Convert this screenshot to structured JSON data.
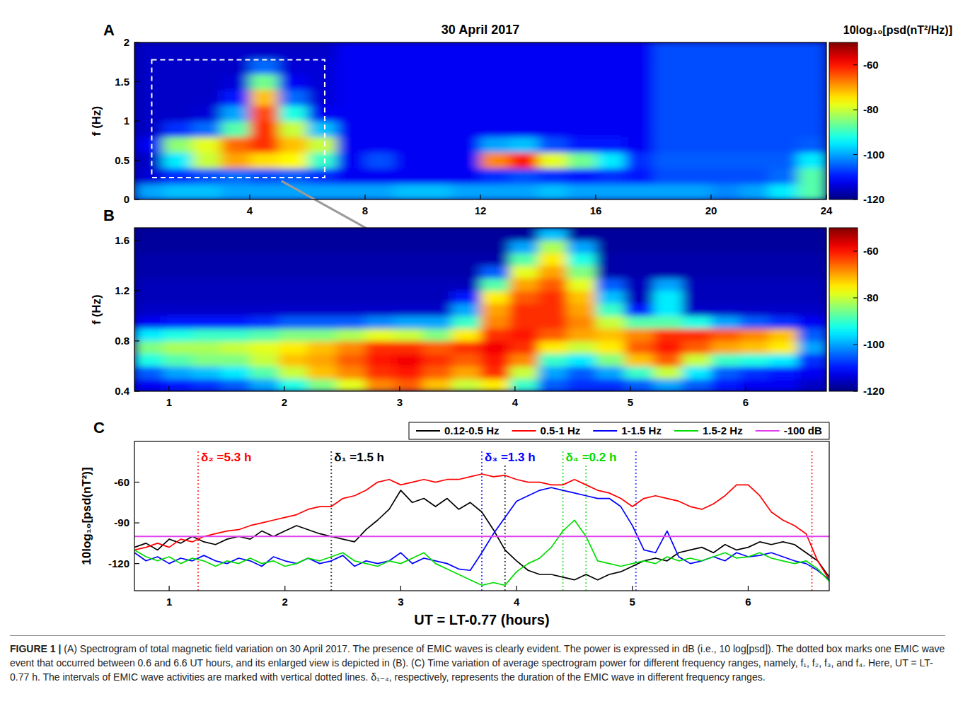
{
  "chart_data": [
    {
      "type": "heatmap",
      "panel": "A",
      "title": "30 April 2017",
      "ylabel": "f (Hz)",
      "color": "jet",
      "xlim": [
        0,
        24
      ],
      "ylim": [
        0,
        2
      ],
      "xticks": [
        4,
        8,
        12,
        16,
        20,
        24
      ],
      "yticks": [
        0,
        0.5,
        1,
        1.5,
        2
      ],
      "colorbar": {
        "label": "10log₁₀[psd(nT²/Hz)]",
        "range": [
          -120,
          -50
        ],
        "ticks": [
          -60,
          -80,
          -100,
          -120
        ]
      },
      "highlight": {
        "x": [
          0.6,
          6.6
        ],
        "y": [
          0.28,
          1.78
        ]
      },
      "x": [
        0.5,
        1.5,
        2.5,
        3.5,
        4.5,
        5.5,
        6.5,
        7.5,
        8.5,
        9.5,
        10.5,
        11.5,
        12.5,
        13.5,
        14.5,
        15.5,
        16.5,
        17.5,
        18.5,
        19.5,
        20.5,
        21.5,
        22.5,
        23.5
      ],
      "y": [
        0.1,
        0.3,
        0.5,
        0.7,
        0.9,
        1.1,
        1.3,
        1.5,
        1.7,
        1.9
      ],
      "values": [
        [
          -100,
          -98,
          -98,
          -100,
          -100,
          -100,
          -100,
          -100,
          -100,
          -98,
          -98,
          -100,
          -100,
          -100,
          -98,
          -100,
          -100,
          -100,
          -100,
          -100,
          -102,
          -100,
          -95,
          -88
        ],
        [
          -114,
          -108,
          -106,
          -104,
          -106,
          -105,
          -108,
          -112,
          -112,
          -112,
          -112,
          -112,
          -108,
          -106,
          -108,
          -110,
          -108,
          -110,
          -106,
          -106,
          -106,
          -106,
          -104,
          -88
        ],
        [
          -115,
          -95,
          -80,
          -70,
          -74,
          -76,
          -90,
          -112,
          -106,
          -112,
          -112,
          -112,
          -68,
          -60,
          -78,
          -86,
          -95,
          -108,
          -105,
          -105,
          -105,
          -105,
          -105,
          -95
        ],
        [
          -112,
          -84,
          -78,
          -66,
          -62,
          -72,
          -80,
          -112,
          -112,
          -112,
          -112,
          -112,
          -100,
          -98,
          -106,
          -110,
          -110,
          -112,
          -106,
          -106,
          -106,
          -106,
          -106,
          -105
        ],
        [
          -115,
          -108,
          -104,
          -88,
          -62,
          -80,
          -98,
          -112,
          -112,
          -112,
          -112,
          -112,
          -112,
          -112,
          -112,
          -112,
          -112,
          -112,
          -106,
          -106,
          -106,
          -106,
          -106,
          -106
        ],
        [
          -115,
          -115,
          -114,
          -100,
          -64,
          -92,
          -112,
          -112,
          -112,
          -112,
          -112,
          -112,
          -112,
          -112,
          -112,
          -112,
          -112,
          -112,
          -106,
          -106,
          -106,
          -106,
          -106,
          -106
        ],
        [
          -115,
          -115,
          -115,
          -110,
          -72,
          -104,
          -114,
          -112,
          -112,
          -112,
          -112,
          -112,
          -112,
          -112,
          -112,
          -112,
          -112,
          -112,
          -106,
          -106,
          -106,
          -106,
          -106,
          -106
        ],
        [
          -115,
          -115,
          -115,
          -114,
          -86,
          -112,
          -114,
          -112,
          -112,
          -112,
          -112,
          -112,
          -112,
          -112,
          -112,
          -112,
          -112,
          -112,
          -106,
          -106,
          -106,
          -106,
          -106,
          -106
        ],
        [
          -115,
          -115,
          -115,
          -115,
          -104,
          -114,
          -114,
          -112,
          -112,
          -112,
          -112,
          -112,
          -112,
          -112,
          -112,
          -112,
          -112,
          -112,
          -106,
          -106,
          -106,
          -106,
          -106,
          -106
        ],
        [
          -115,
          -115,
          -115,
          -115,
          -115,
          -115,
          -115,
          -112,
          -112,
          -112,
          -112,
          -112,
          -112,
          -112,
          -112,
          -112,
          -112,
          -112,
          -106,
          -106,
          -106,
          -106,
          -106,
          -106
        ]
      ]
    },
    {
      "type": "heatmap",
      "panel": "B",
      "ylabel": "f (Hz)",
      "color": "jet",
      "xlim": [
        0.7,
        6.7
      ],
      "ylim": [
        0.4,
        1.7
      ],
      "xticks": [
        1,
        2,
        3,
        4,
        5,
        6
      ],
      "yticks": [
        0.4,
        0.8,
        1.2,
        1.6
      ],
      "colorbar": {
        "range": [
          -120,
          -50
        ],
        "ticks": [
          -60,
          -80,
          -100,
          -120
        ]
      },
      "x": [
        0.825,
        1.075,
        1.325,
        1.575,
        1.825,
        2.075,
        2.325,
        2.575,
        2.825,
        3.075,
        3.325,
        3.575,
        3.825,
        4.075,
        4.325,
        4.575,
        4.825,
        5.075,
        5.325,
        5.575,
        5.825,
        6.075,
        6.325,
        6.575
      ],
      "y": [
        0.45,
        0.55,
        0.65,
        0.75,
        0.85,
        0.95,
        1.05,
        1.15,
        1.25,
        1.35,
        1.45,
        1.55,
        1.65
      ],
      "values": [
        [
          -112,
          -110,
          -108,
          -105,
          -100,
          -92,
          -85,
          -78,
          -68,
          -65,
          -72,
          -80,
          -75,
          -90,
          -105,
          -108,
          -108,
          -105,
          -100,
          -105,
          -110,
          -112,
          -112,
          -115
        ],
        [
          -105,
          -100,
          -98,
          -95,
          -88,
          -80,
          -72,
          -68,
          -62,
          -60,
          -65,
          -70,
          -62,
          -80,
          -100,
          -105,
          -100,
          -90,
          -80,
          -95,
          -105,
          -108,
          -110,
          -112
        ],
        [
          -92,
          -88,
          -85,
          -85,
          -80,
          -72,
          -70,
          -65,
          -60,
          -58,
          -62,
          -65,
          -60,
          -68,
          -90,
          -95,
          -85,
          -72,
          -65,
          -80,
          -90,
          -92,
          -95,
          -108
        ],
        [
          -85,
          -82,
          -82,
          -80,
          -78,
          -75,
          -72,
          -68,
          -62,
          -62,
          -65,
          -62,
          -58,
          -62,
          -75,
          -80,
          -75,
          -65,
          -60,
          -65,
          -70,
          -72,
          -75,
          -100
        ],
        [
          -95,
          -92,
          -90,
          -90,
          -88,
          -85,
          -85,
          -82,
          -78,
          -80,
          -85,
          -75,
          -62,
          -60,
          -65,
          -70,
          -72,
          -68,
          -62,
          -62,
          -65,
          -68,
          -72,
          -105
        ],
        [
          -112,
          -110,
          -110,
          -110,
          -108,
          -105,
          -105,
          -105,
          -102,
          -100,
          -100,
          -90,
          -68,
          -62,
          -62,
          -68,
          -80,
          -88,
          -88,
          -92,
          -100,
          -105,
          -108,
          -112
        ],
        [
          -115,
          -115,
          -115,
          -115,
          -115,
          -115,
          -115,
          -115,
          -115,
          -115,
          -115,
          -100,
          -70,
          -62,
          -62,
          -70,
          -90,
          -110,
          -95,
          -115,
          -115,
          -115,
          -115,
          -115
        ],
        [
          -116,
          -116,
          -116,
          -116,
          -116,
          -116,
          -116,
          -116,
          -116,
          -116,
          -116,
          -110,
          -75,
          -65,
          -62,
          -72,
          -98,
          -116,
          -95,
          -116,
          -116,
          -116,
          -116,
          -116
        ],
        [
          -116,
          -116,
          -116,
          -116,
          -116,
          -116,
          -116,
          -116,
          -116,
          -116,
          -116,
          -116,
          -88,
          -70,
          -65,
          -78,
          -105,
          -116,
          -100,
          -116,
          -116,
          -116,
          -116,
          -116
        ],
        [
          -117,
          -117,
          -117,
          -117,
          -117,
          -117,
          -117,
          -117,
          -117,
          -117,
          -117,
          -117,
          -105,
          -78,
          -70,
          -85,
          -117,
          -117,
          -117,
          -117,
          -117,
          -117,
          -117,
          -117
        ],
        [
          -117,
          -117,
          -117,
          -117,
          -117,
          -117,
          -117,
          -117,
          -117,
          -117,
          -117,
          -117,
          -117,
          -88,
          -75,
          -92,
          -117,
          -117,
          -117,
          -117,
          -117,
          -117,
          -117,
          -117
        ],
        [
          -118,
          -118,
          -118,
          -118,
          -118,
          -118,
          -118,
          -118,
          -118,
          -118,
          -118,
          -118,
          -118,
          -100,
          -82,
          -100,
          -118,
          -118,
          -118,
          -118,
          -118,
          -118,
          -118,
          -118
        ],
        [
          -118,
          -118,
          -118,
          -118,
          -118,
          -118,
          -118,
          -118,
          -118,
          -118,
          -118,
          -118,
          -118,
          -118,
          -98,
          -118,
          -118,
          -118,
          -118,
          -118,
          -118,
          -118,
          -118,
          -118
        ]
      ]
    },
    {
      "type": "line",
      "panel": "C",
      "xlabel": "UT = LT-0.77 (hours)",
      "ylabel": "10log₁₀[psd(nT²)]",
      "legend": "top-right",
      "xlim": [
        0.7,
        6.7
      ],
      "ylim": [
        -140,
        -30
      ],
      "xticks": [
        1,
        2,
        3,
        4,
        5,
        6
      ],
      "yticks": [
        -120,
        -90,
        -60
      ],
      "x": [
        0.7,
        0.8,
        0.9,
        1.0,
        1.1,
        1.2,
        1.3,
        1.4,
        1.5,
        1.6,
        1.7,
        1.8,
        1.9,
        2.0,
        2.1,
        2.2,
        2.3,
        2.4,
        2.5,
        2.6,
        2.7,
        2.8,
        2.9,
        3.0,
        3.1,
        3.2,
        3.3,
        3.4,
        3.5,
        3.6,
        3.7,
        3.8,
        3.9,
        4.0,
        4.1,
        4.2,
        4.3,
        4.4,
        4.5,
        4.6,
        4.7,
        4.8,
        4.9,
        5.0,
        5.1,
        5.2,
        5.3,
        5.4,
        5.5,
        5.6,
        5.7,
        5.8,
        5.9,
        6.0,
        6.1,
        6.2,
        6.3,
        6.4,
        6.5,
        6.6,
        6.7
      ],
      "series": [
        {
          "name": "0.12-0.5 Hz",
          "color": "#000000",
          "values": [
            -108,
            -105,
            -110,
            -102,
            -105,
            -100,
            -104,
            -106,
            -102,
            -100,
            -102,
            -96,
            -100,
            -96,
            -92,
            -95,
            -98,
            -100,
            -102,
            -104,
            -95,
            -88,
            -80,
            -66,
            -75,
            -72,
            -78,
            -72,
            -80,
            -75,
            -82,
            -95,
            -110,
            -118,
            -125,
            -128,
            -128,
            -130,
            -132,
            -128,
            -132,
            -128,
            -126,
            -122,
            -118,
            -116,
            -118,
            -112,
            -110,
            -108,
            -112,
            -106,
            -110,
            -108,
            -104,
            -106,
            -104,
            -106,
            -112,
            -118,
            -130
          ]
        },
        {
          "name": "0.5-1 Hz",
          "color": "#ff0000",
          "values": [
            -110,
            -108,
            -105,
            -108,
            -102,
            -104,
            -100,
            -98,
            -96,
            -95,
            -92,
            -90,
            -88,
            -86,
            -84,
            -80,
            -78,
            -78,
            -72,
            -70,
            -66,
            -60,
            -58,
            -62,
            -60,
            -58,
            -60,
            -58,
            -58,
            -56,
            -54,
            -56,
            -55,
            -58,
            -60,
            -60,
            -62,
            -62,
            -58,
            -62,
            -66,
            -68,
            -72,
            -78,
            -72,
            -70,
            -72,
            -74,
            -78,
            -80,
            -76,
            -70,
            -62,
            -62,
            -70,
            -82,
            -88,
            -92,
            -98,
            -118,
            -132
          ]
        },
        {
          "name": "1-1.5 Hz",
          "color": "#0000ff",
          "values": [
            -112,
            -118,
            -115,
            -120,
            -116,
            -118,
            -114,
            -118,
            -120,
            -116,
            -118,
            -122,
            -115,
            -118,
            -120,
            -116,
            -120,
            -118,
            -114,
            -122,
            -118,
            -120,
            -118,
            -112,
            -120,
            -116,
            -118,
            -120,
            -124,
            -125,
            -112,
            -98,
            -86,
            -74,
            -70,
            -66,
            -64,
            -66,
            -68,
            -70,
            -72,
            -72,
            -78,
            -92,
            -110,
            -112,
            -96,
            -115,
            -120,
            -118,
            -115,
            -118,
            -112,
            -115,
            -114,
            -112,
            -115,
            -118,
            -120,
            -125,
            -132
          ]
        },
        {
          "name": "1.5-2 Hz",
          "color": "#00dd00",
          "values": [
            -110,
            -115,
            -118,
            -115,
            -120,
            -116,
            -118,
            -122,
            -118,
            -120,
            -116,
            -120,
            -118,
            -122,
            -120,
            -116,
            -118,
            -115,
            -112,
            -118,
            -120,
            -122,
            -118,
            -120,
            -116,
            -112,
            -120,
            -124,
            -128,
            -132,
            -136,
            -134,
            -136,
            -126,
            -120,
            -116,
            -108,
            -96,
            -88,
            -100,
            -118,
            -120,
            -122,
            -120,
            -118,
            -120,
            -115,
            -118,
            -116,
            -118,
            -115,
            -112,
            -116,
            -115,
            -112,
            -116,
            -118,
            -120,
            -118,
            -124,
            -133
          ]
        }
      ],
      "hlines": [
        {
          "name": "-100 dB",
          "value": -100,
          "color": "#e040f0"
        }
      ],
      "annotations": [
        {
          "text": "δ₂ =5.3 h",
          "x": [
            1.25,
            6.55
          ],
          "color": "#ff0000"
        },
        {
          "text": "δ₁ =1.5 h",
          "x": [
            2.4,
            3.9
          ],
          "color": "#000000"
        },
        {
          "text": "δ₃ =1.3 h",
          "x": [
            3.7,
            5.03
          ],
          "color": "#0000ff"
        },
        {
          "text": "δ₄ =0.2 h",
          "x": [
            4.4,
            4.6
          ],
          "color": "#00dd00"
        }
      ]
    }
  ],
  "caption": "FIGURE 1 | (A) Spectrogram of total magnetic field variation on 30 April 2017. The presence of EMIC waves is clearly evident. The power is expressed in dB (i.e., 10 log[psd]). The dotted box marks one EMIC wave event that occurred between 0.6 and 6.6 UT hours, and its enlarged view is depicted in (B). (C) Time variation of average spectrogram power for different frequency ranges, namely, f₁, f₂, f₃, and f₄. Here, UT = LT-0.77 h. The intervals of EMIC wave activities are marked with vertical dotted lines. δ₁₋₄, respectively, represents the duration of the EMIC wave in different frequency ranges."
}
